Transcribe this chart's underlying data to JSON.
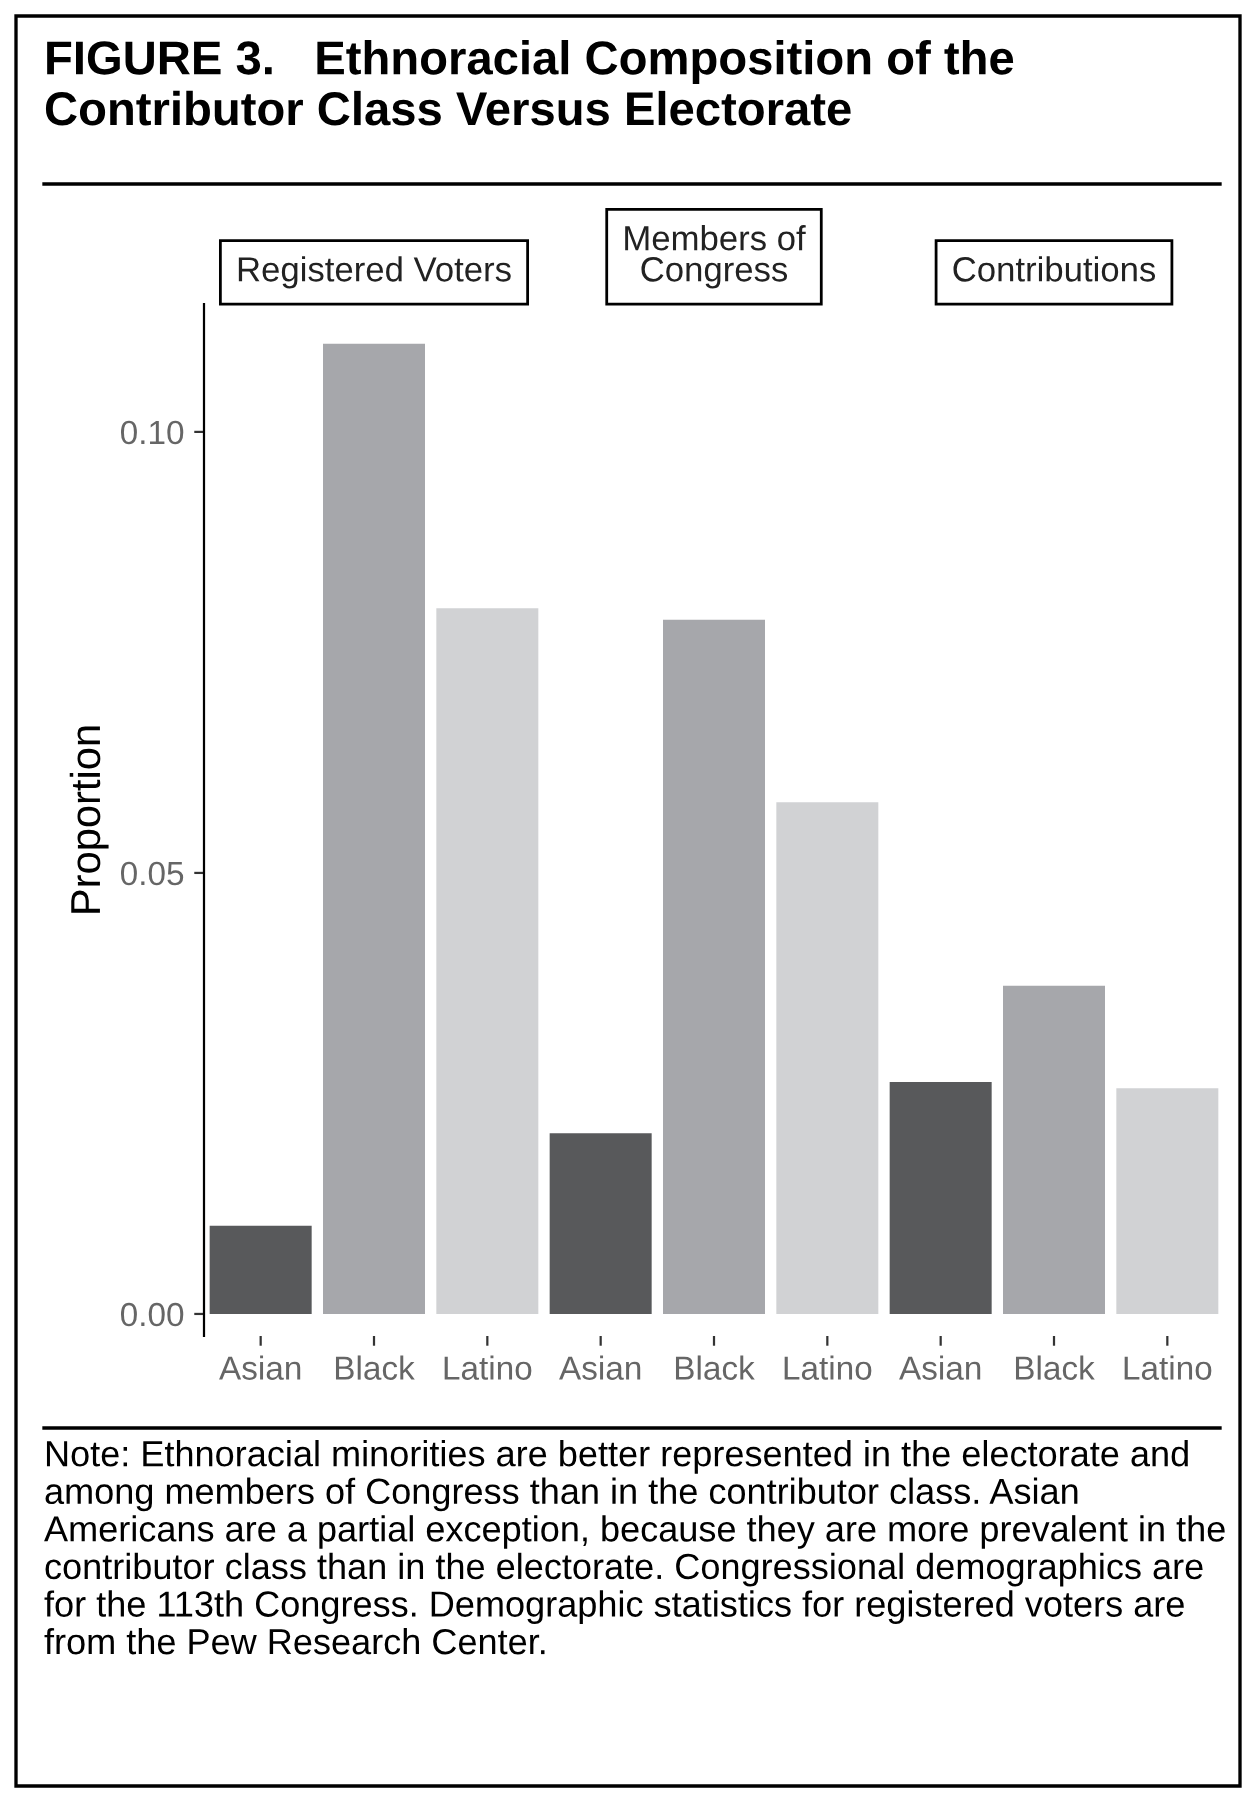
{
  "chart_data": {
    "type": "bar",
    "title": "FIGURE 3.   Ethnoracial Composition of the Contributor Class Versus Electorate",
    "ylabel": "Proportion",
    "categories": [
      "Asian",
      "Black",
      "Latino",
      "Asian",
      "Black",
      "Latino",
      "Asian",
      "Black",
      "Latino"
    ],
    "values": [
      0.01,
      0.11,
      0.08,
      0.0205,
      0.0787,
      0.058,
      0.0263,
      0.0372,
      0.0256
    ],
    "colors": [
      "#58595b",
      "#a6a7ab",
      "#d1d2d4",
      "#58595b",
      "#a6a7ab",
      "#d1d2d4",
      "#58595b",
      "#a6a7ab",
      "#d1d2d4"
    ],
    "ylim": [
      -0.0025,
      0.1145
    ],
    "yticks": [
      {
        "value": 0,
        "label": "0.00"
      },
      {
        "value": 0.05,
        "label": "0.05"
      },
      {
        "value": 0.1,
        "label": "0.10"
      }
    ],
    "grid": false,
    "annotations": [
      "Registered Voters",
      "Members of\nCongress",
      "Contributions",
      "Note: Ethnoracial minorities are better represented in the electorate and among members of Congress than in the contributor class. Asian Americans are a partial exception, because they are more prevalent in the contributor class than in the electorate. Congressional demographics are for the 113th Congress. Demographic statistics for registered voters are from the Pew Research Center."
    ]
  }
}
